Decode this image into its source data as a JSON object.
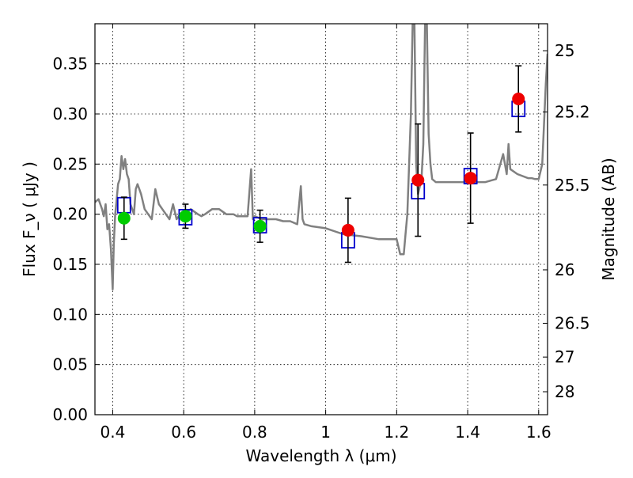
{
  "chart_data": {
    "type": "scatter",
    "xlabel": "Wavelength  λ (μm)",
    "ylabel": "Flux  F_ν  ( μJy )",
    "ylabel_right": "Magnitude (AB)",
    "xlim": [
      0.35,
      1.625
    ],
    "ylim": [
      0.0,
      0.39
    ],
    "grid": true,
    "x_ticks": [
      {
        "value": 0.4,
        "label": "0.4"
      },
      {
        "value": 0.6,
        "label": "0.6"
      },
      {
        "value": 0.8,
        "label": "0.8"
      },
      {
        "value": 1.0,
        "label": "1"
      },
      {
        "value": 1.2,
        "label": "1.2"
      },
      {
        "value": 1.4,
        "label": "1.4"
      },
      {
        "value": 1.6,
        "label": "1.6"
      }
    ],
    "y_ticks": [
      {
        "value": 0.0,
        "label": "0.00"
      },
      {
        "value": 0.05,
        "label": "0.05"
      },
      {
        "value": 0.1,
        "label": "0.10"
      },
      {
        "value": 0.15,
        "label": "0.15"
      },
      {
        "value": 0.2,
        "label": "0.20"
      },
      {
        "value": 0.25,
        "label": "0.25"
      },
      {
        "value": 0.3,
        "label": "0.30"
      },
      {
        "value": 0.35,
        "label": "0.35"
      }
    ],
    "right_ticks": [
      {
        "flux": 0.3631,
        "label": "25"
      },
      {
        "flux": 0.302,
        "label": "25.2"
      },
      {
        "flux": 0.2291,
        "label": "25.5"
      },
      {
        "flux": 0.1445,
        "label": "26"
      },
      {
        "flux": 0.0912,
        "label": "26.5"
      },
      {
        "flux": 0.0575,
        "label": "27"
      },
      {
        "flux": 0.0229,
        "label": "28"
      }
    ],
    "series": [
      {
        "kind": "line",
        "color": "#808080",
        "x": [
          0.35,
          0.36,
          0.37,
          0.375,
          0.38,
          0.385,
          0.39,
          0.395,
          0.4,
          0.403,
          0.407,
          0.41,
          0.415,
          0.42,
          0.425,
          0.43,
          0.435,
          0.44,
          0.445,
          0.45,
          0.46,
          0.465,
          0.47,
          0.475,
          0.48,
          0.49,
          0.5,
          0.51,
          0.52,
          0.53,
          0.54,
          0.55,
          0.56,
          0.57,
          0.58,
          0.59,
          0.6,
          0.62,
          0.64,
          0.65,
          0.66,
          0.68,
          0.7,
          0.72,
          0.74,
          0.75,
          0.76,
          0.77,
          0.78,
          0.79,
          0.795,
          0.8,
          0.82,
          0.84,
          0.86,
          0.88,
          0.9,
          0.92,
          0.93,
          0.935,
          0.94,
          0.96,
          1.0,
          1.05,
          1.1,
          1.15,
          1.2,
          1.21,
          1.22,
          1.225,
          1.23,
          1.24,
          1.245,
          1.25,
          1.255,
          1.26,
          1.27,
          1.275,
          1.28,
          1.285,
          1.29,
          1.295,
          1.3,
          1.31,
          1.33,
          1.35,
          1.38,
          1.4,
          1.42,
          1.45,
          1.48,
          1.5,
          1.51,
          1.515,
          1.52,
          1.54,
          1.57,
          1.58,
          1.59,
          1.6,
          1.61,
          1.62,
          1.625
        ],
        "y": [
          0.212,
          0.215,
          0.205,
          0.198,
          0.21,
          0.185,
          0.19,
          0.165,
          0.125,
          0.17,
          0.2,
          0.21,
          0.23,
          0.235,
          0.258,
          0.245,
          0.255,
          0.24,
          0.235,
          0.21,
          0.2,
          0.225,
          0.23,
          0.225,
          0.22,
          0.205,
          0.2,
          0.195,
          0.225,
          0.21,
          0.205,
          0.2,
          0.195,
          0.21,
          0.195,
          0.2,
          0.2,
          0.205,
          0.2,
          0.198,
          0.2,
          0.205,
          0.205,
          0.2,
          0.2,
          0.198,
          0.198,
          0.198,
          0.198,
          0.245,
          0.195,
          0.198,
          0.195,
          0.195,
          0.195,
          0.193,
          0.193,
          0.19,
          0.228,
          0.195,
          0.19,
          0.188,
          0.186,
          0.18,
          0.178,
          0.175,
          0.175,
          0.16,
          0.16,
          0.18,
          0.2,
          0.3,
          0.39,
          0.39,
          0.25,
          0.22,
          0.235,
          0.27,
          0.39,
          0.39,
          0.28,
          0.25,
          0.235,
          0.232,
          0.232,
          0.232,
          0.232,
          0.232,
          0.232,
          0.232,
          0.235,
          0.26,
          0.24,
          0.27,
          0.245,
          0.24,
          0.236,
          0.236,
          0.235,
          0.235,
          0.25,
          0.33,
          0.36
        ]
      },
      {
        "kind": "model-box",
        "color": "#0000cc",
        "x": [
          0.432,
          0.605,
          0.815,
          1.063,
          1.26,
          1.408,
          1.543
        ],
        "y": [
          0.209,
          0.197,
          0.189,
          0.174,
          0.223,
          0.238,
          0.305
        ]
      },
      {
        "kind": "points",
        "color": "#00cc00",
        "x": [
          0.432,
          0.605,
          0.815
        ],
        "y": [
          0.196,
          0.198,
          0.188
        ],
        "yerr": [
          0.021,
          0.012,
          0.016
        ]
      },
      {
        "kind": "points",
        "color": "#ee0000",
        "x": [
          1.063,
          1.26,
          1.408,
          1.543
        ],
        "y": [
          0.184,
          0.234,
          0.236,
          0.315
        ],
        "yerr": [
          0.032,
          0.056,
          0.045,
          0.033
        ]
      }
    ]
  }
}
